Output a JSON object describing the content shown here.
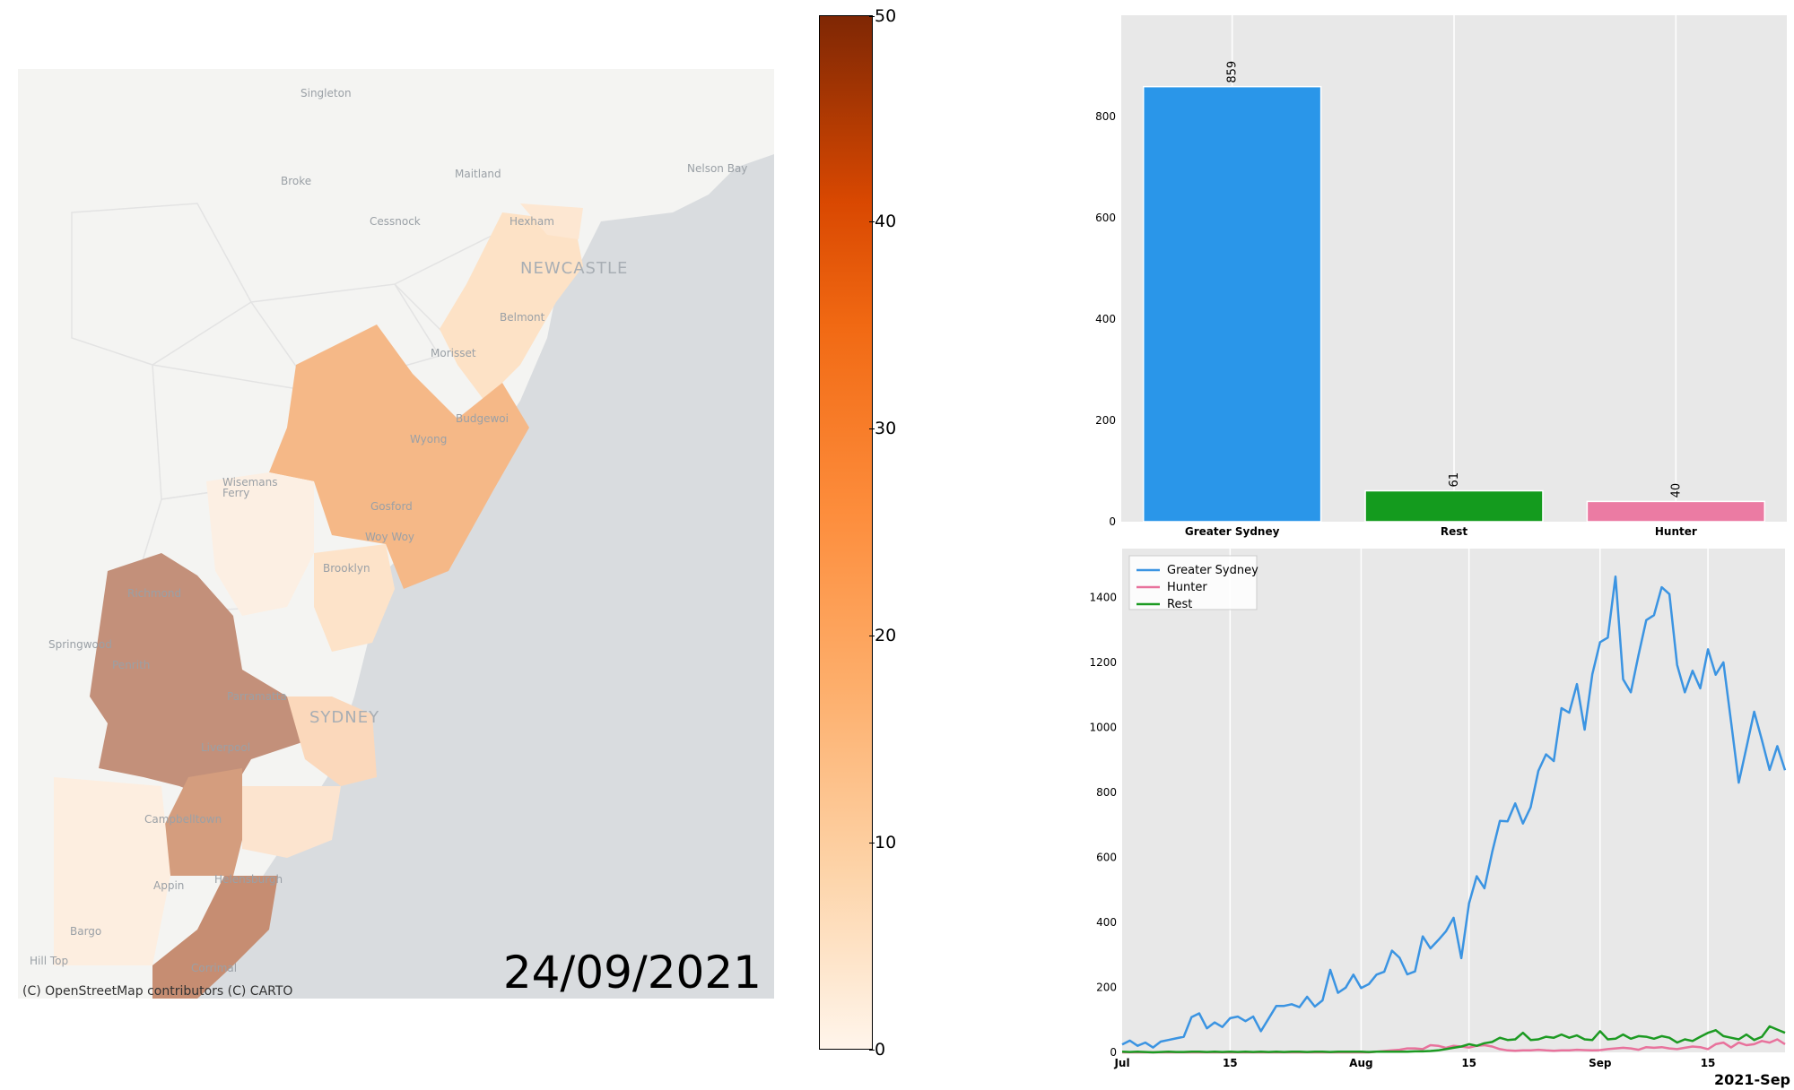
{
  "map": {
    "attribution": "(C) OpenStreetMap contributors (C) CARTO",
    "date": "24/09/2021",
    "places": [
      {
        "name": "Singleton"
      },
      {
        "name": "Broke"
      },
      {
        "name": "Maitland"
      },
      {
        "name": "Nelson Bay"
      },
      {
        "name": "Cessnock"
      },
      {
        "name": "Hexham"
      },
      {
        "name": "NEWCASTLE"
      },
      {
        "name": "Belmont"
      },
      {
        "name": "Morisset"
      },
      {
        "name": "Budgewoi"
      },
      {
        "name": "Wyong"
      },
      {
        "name": "Wisemans Ferry"
      },
      {
        "name": "Gosford"
      },
      {
        "name": "Woy Woy"
      },
      {
        "name": "Brooklyn"
      },
      {
        "name": "Richmond"
      },
      {
        "name": "Springwood"
      },
      {
        "name": "Penrith"
      },
      {
        "name": "Parramatta"
      },
      {
        "name": "SYDNEY"
      },
      {
        "name": "Liverpool"
      },
      {
        "name": "Campbelltown"
      },
      {
        "name": "Appin"
      },
      {
        "name": "Helensburgh"
      },
      {
        "name": "Bargo"
      },
      {
        "name": "Hill Top"
      },
      {
        "name": "Corrimal"
      }
    ]
  },
  "colorbar": {
    "ticks": [
      "0",
      "10",
      "20",
      "30",
      "40",
      "50"
    ],
    "min": 0,
    "max": 50,
    "colors": [
      "#fff5eb",
      "#fdd4a9",
      "#fdae6b",
      "#fd8d3c",
      "#f16913",
      "#d94801",
      "#a63603",
      "#7f2704"
    ]
  },
  "chart_data": [
    {
      "type": "bar",
      "categories": [
        "Greater Sydney",
        "Rest",
        "Hunter"
      ],
      "values": [
        859,
        61,
        40
      ],
      "value_labels": [
        "859",
        "61",
        "40"
      ],
      "colors": [
        "#2a96e9",
        "#149b1e",
        "#eb7ba3"
      ],
      "yticks": [
        "0",
        "200",
        "400",
        "600",
        "800"
      ],
      "ylim": [
        0,
        1000
      ],
      "grid": true,
      "background": "#e8e8e8"
    },
    {
      "type": "line",
      "start_date": "2021-07-01",
      "xticks": [
        "Jul",
        "15",
        "Aug",
        "15",
        "Sep",
        "15"
      ],
      "xtick_dates": [
        "2021-07-01",
        "2021-07-15",
        "2021-08-01",
        "2021-08-15",
        "2021-09-01",
        "2021-09-15"
      ],
      "x_offset_label": "2021-Sep",
      "yticks": [
        "0",
        "200",
        "400",
        "600",
        "800",
        "1000",
        "1200",
        "1400"
      ],
      "ylim": [
        0,
        1550
      ],
      "grid": true,
      "legend_position": "top-left",
      "background": "#e8e8e8",
      "series": [
        {
          "name": "Greater Sydney",
          "color": "#3b94e2",
          "values": [
            24,
            36,
            20,
            30,
            15,
            33,
            38,
            43,
            48,
            108,
            120,
            74,
            92,
            78,
            105,
            110,
            96,
            110,
            65,
            104,
            143,
            143,
            148,
            139,
            171,
            141,
            160,
            254,
            183,
            199,
            239,
            198,
            210,
            239,
            248,
            313,
            291,
            240,
            249,
            357,
            320,
            345,
            372,
            414,
            290,
            458,
            542,
            505,
            616,
            712,
            711,
            766,
            704,
            754,
            866,
            917,
            896,
            1059,
            1045,
            1133,
            993,
            1164,
            1262,
            1276,
            1464,
            1148,
            1108,
            1223,
            1330,
            1345,
            1431,
            1410,
            1192,
            1108,
            1174,
            1120,
            1240,
            1162,
            1200,
            1018,
            830,
            938,
            1048,
            961,
            869,
            942,
            868
          ]
        },
        {
          "name": "Hunter",
          "color": "#e8729c",
          "values": [
            0,
            0,
            0,
            0,
            0,
            0,
            0,
            0,
            0,
            0,
            0,
            0,
            0,
            0,
            0,
            0,
            0,
            0,
            0,
            0,
            0,
            0,
            0,
            0,
            0,
            0,
            0,
            0,
            0,
            0,
            0,
            0,
            0,
            2,
            4,
            6,
            8,
            12,
            12,
            10,
            22,
            20,
            14,
            20,
            18,
            15,
            20,
            22,
            18,
            10,
            6,
            5,
            6,
            6,
            8,
            6,
            5,
            6,
            6,
            8,
            7,
            6,
            7,
            10,
            12,
            14,
            12,
            8,
            16,
            14,
            16,
            12,
            10,
            14,
            18,
            16,
            10,
            25,
            30,
            15,
            30,
            22,
            25,
            35,
            30,
            40,
            25
          ]
        },
        {
          "name": "Rest",
          "color": "#1c9a22",
          "values": [
            2,
            1,
            2,
            1,
            0,
            1,
            2,
            1,
            1,
            2,
            2,
            1,
            2,
            1,
            2,
            1,
            2,
            1,
            2,
            1,
            2,
            1,
            2,
            2,
            1,
            2,
            2,
            1,
            2,
            2,
            2,
            2,
            1,
            2,
            2,
            2,
            2,
            2,
            3,
            3,
            4,
            6,
            10,
            14,
            18,
            25,
            20,
            28,
            32,
            45,
            38,
            40,
            60,
            38,
            40,
            48,
            45,
            55,
            45,
            52,
            40,
            38,
            65,
            40,
            42,
            55,
            42,
            50,
            48,
            42,
            50,
            45,
            30,
            40,
            35,
            48,
            60,
            68,
            50,
            45,
            40,
            55,
            38,
            48,
            80,
            70,
            60
          ]
        }
      ]
    }
  ]
}
